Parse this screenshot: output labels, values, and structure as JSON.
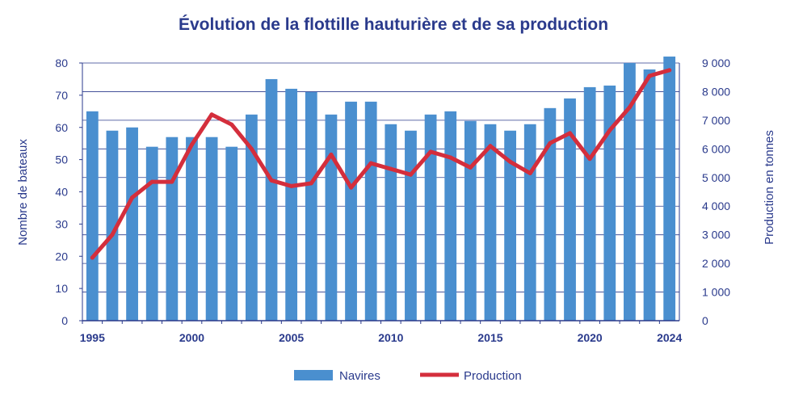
{
  "chart_data": {
    "type": "bar",
    "title": "Évolution de la flottille hauturière et de sa production",
    "xlabel": "",
    "ylabel": "Nombre de bateaux",
    "y2label": "Production en tonnes",
    "categories": [
      1995,
      1996,
      1997,
      1998,
      1999,
      2000,
      2001,
      2002,
      2003,
      2004,
      2005,
      2006,
      2007,
      2008,
      2009,
      2010,
      2011,
      2012,
      2013,
      2014,
      2015,
      2016,
      2017,
      2018,
      2019,
      2020,
      2021,
      2022,
      2023,
      2024
    ],
    "x_tick_labels": [
      "1995",
      "2000",
      "2005",
      "2010",
      "2015",
      "2020",
      "2024"
    ],
    "ylim": [
      0,
      80
    ],
    "y_ticks": [
      "0",
      "10",
      "20",
      "30",
      "40",
      "50",
      "60",
      "70",
      "80"
    ],
    "y2lim": [
      0,
      9000
    ],
    "y2_ticks": [
      "0",
      "1 000",
      "2 000",
      "3 000",
      "4 000",
      "5 000",
      "6 000",
      "7 000",
      "8 000",
      "9 000"
    ],
    "series": [
      {
        "name": "Navires",
        "kind": "bar",
        "axis": "left",
        "color": "#4a8fcf",
        "values": [
          65,
          59,
          60,
          54,
          57,
          57,
          57,
          54,
          64,
          75,
          72,
          71,
          64,
          68,
          68,
          61,
          59,
          64,
          65,
          62,
          61,
          59,
          61,
          66,
          69,
          72.5,
          73,
          80,
          78,
          82
        ]
      },
      {
        "name": "Production",
        "kind": "line",
        "axis": "right",
        "color": "#d42e3c",
        "values": [
          2200,
          3000,
          4300,
          4850,
          4850,
          6150,
          7200,
          6850,
          6000,
          4900,
          4700,
          4800,
          5800,
          4650,
          5500,
          5300,
          5100,
          5900,
          5700,
          5350,
          6100,
          5550,
          5150,
          6200,
          6550,
          5650,
          6650,
          7450,
          8550,
          8750
        ]
      }
    ],
    "grid": true,
    "legend": "bottom-center"
  },
  "colors": {
    "title": "#2a3a8c",
    "axis_text": "#2a3a8c",
    "grid": "#2a3a8c",
    "bar": "#4a8fcf",
    "line": "#d42e3c"
  }
}
